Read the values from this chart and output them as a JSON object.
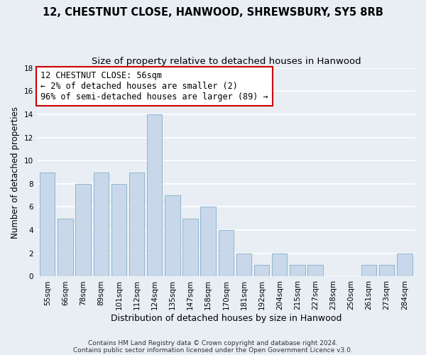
{
  "title": "12, CHESTNUT CLOSE, HANWOOD, SHREWSBURY, SY5 8RB",
  "subtitle": "Size of property relative to detached houses in Hanwood",
  "xlabel": "Distribution of detached houses by size in Hanwood",
  "ylabel": "Number of detached properties",
  "bar_labels": [
    "55sqm",
    "66sqm",
    "78sqm",
    "89sqm",
    "101sqm",
    "112sqm",
    "124sqm",
    "135sqm",
    "147sqm",
    "158sqm",
    "170sqm",
    "181sqm",
    "192sqm",
    "204sqm",
    "215sqm",
    "227sqm",
    "238sqm",
    "250sqm",
    "261sqm",
    "273sqm",
    "284sqm"
  ],
  "bar_heights": [
    9,
    5,
    8,
    9,
    8,
    9,
    14,
    7,
    5,
    6,
    4,
    2,
    1,
    2,
    1,
    1,
    0,
    0,
    1,
    1,
    2
  ],
  "bar_color": "#c8d8ea",
  "bar_edge_color": "#90b4d0",
  "annotation_line1": "12 CHESTNUT CLOSE: 56sqm",
  "annotation_line2": "← 2% of detached houses are smaller (2)",
  "annotation_line3": "96% of semi-detached houses are larger (89) →",
  "annotation_box_color": "#ffffff",
  "annotation_box_edge_color": "#cc0000",
  "ylim": [
    0,
    18
  ],
  "yticks": [
    0,
    2,
    4,
    6,
    8,
    10,
    12,
    14,
    16,
    18
  ],
  "footer_line1": "Contains HM Land Registry data © Crown copyright and database right 2024.",
  "footer_line2": "Contains public sector information licensed under the Open Government Licence v3.0.",
  "bg_color": "#e8eef4",
  "plot_bg_color": "#e8eef4",
  "grid_color": "#ffffff",
  "title_fontsize": 10.5,
  "subtitle_fontsize": 9.5,
  "annotation_fontsize": 8.5,
  "tick_fontsize": 7.5,
  "ylabel_fontsize": 8.5,
  "xlabel_fontsize": 9
}
